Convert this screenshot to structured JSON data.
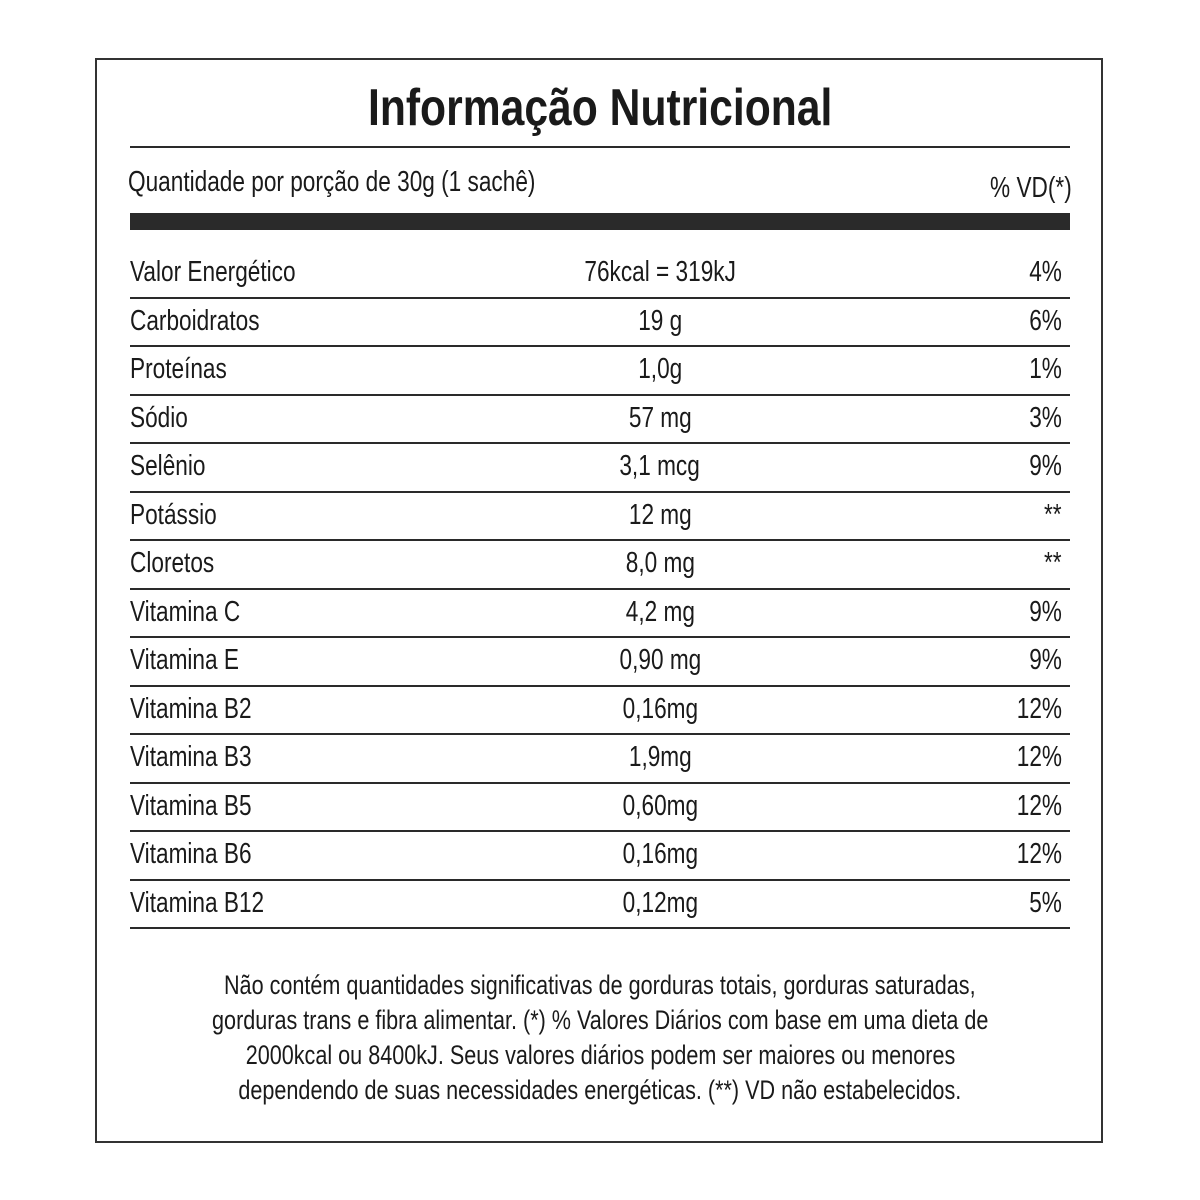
{
  "title": "Informação Nutricional",
  "serving": "Quantidade por porção de 30g (1 sachê)",
  "dv_header": "% VD(*)",
  "rows": [
    {
      "name": "Valor Energético",
      "amount": "76kcal = 319kJ",
      "dv": "4%"
    },
    {
      "name": "Carboidratos",
      "amount": "19 g",
      "dv": "6%"
    },
    {
      "name": "Proteínas",
      "amount": "1,0g",
      "dv": "1%"
    },
    {
      "name": "Sódio",
      "amount": "57 mg",
      "dv": "3%"
    },
    {
      "name": "Selênio",
      "amount": "3,1 mcg",
      "dv": "9%"
    },
    {
      "name": "Potássio",
      "amount": "12 mg",
      "dv": "**"
    },
    {
      "name": "Cloretos",
      "amount": "8,0 mg",
      "dv": "**"
    },
    {
      "name": "Vitamina C",
      "amount": "4,2 mg",
      "dv": "9%"
    },
    {
      "name": "Vitamina E",
      "amount": "0,90 mg",
      "dv": "9%"
    },
    {
      "name": "Vitamina B2",
      "amount": "0,16mg",
      "dv": "12%"
    },
    {
      "name": "Vitamina B3",
      "amount": "1,9mg",
      "dv": "12%"
    },
    {
      "name": "Vitamina B5",
      "amount": "0,60mg",
      "dv": "12%"
    },
    {
      "name": "Vitamina B6",
      "amount": "0,16mg",
      "dv": "12%"
    },
    {
      "name": "Vitamina B12",
      "amount": "0,12mg",
      "dv": "5%"
    }
  ],
  "footnote": [
    "Não contém quantidades significativas de gorduras totais, gorduras saturadas,",
    "gorduras trans e fibra alimentar. (*) % Valores Diários com base em uma dieta de",
    "2000kcal ou 8400kJ. Seus valores diários podem ser maiores ou menores",
    "dependendo de suas necessidades energéticas. (**) VD não estabelecidos."
  ]
}
